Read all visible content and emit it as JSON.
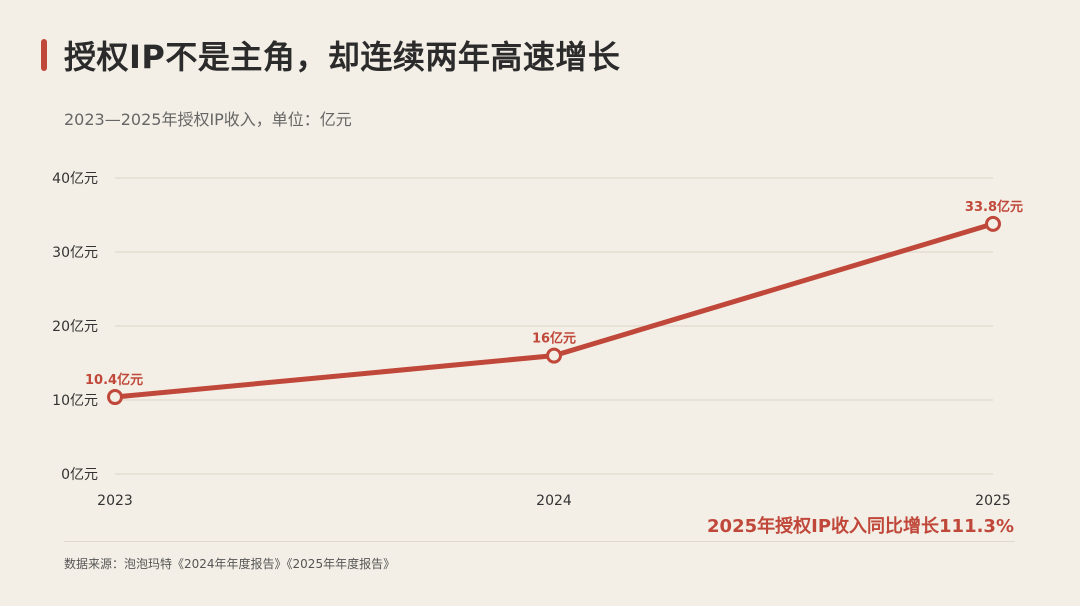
{
  "title": "授权IP不是主角，却连续两年高速增长",
  "subtitle": "2023—2025年授权IP收入，单位：亿元",
  "source": "数据来源：泡泡玛特《2024年年度报告》《2025年年度报告》",
  "highlight": "2025年授权IP收入同比增长111.3%",
  "colors": {
    "accent": "#c0483a",
    "gridline": "#ddd4c6",
    "text": "#333333",
    "background": "#f4efe6"
  },
  "chart_data": {
    "type": "line",
    "x": [
      "2023",
      "2024",
      "2025"
    ],
    "series": [
      {
        "values": [
          10.4,
          16,
          33.8
        ]
      }
    ],
    "data_labels": [
      "10.4亿元",
      "16亿元",
      "33.8亿元"
    ],
    "y_ticks": [
      {
        "value": 0,
        "label": "0亿元"
      },
      {
        "value": 10,
        "label": "10亿元"
      },
      {
        "value": 20,
        "label": "20亿元"
      },
      {
        "value": 30,
        "label": "30亿元"
      },
      {
        "value": 40,
        "label": "40亿元"
      }
    ],
    "ylim": [
      0,
      40
    ],
    "grid": true,
    "markers": "hollow-circle"
  }
}
